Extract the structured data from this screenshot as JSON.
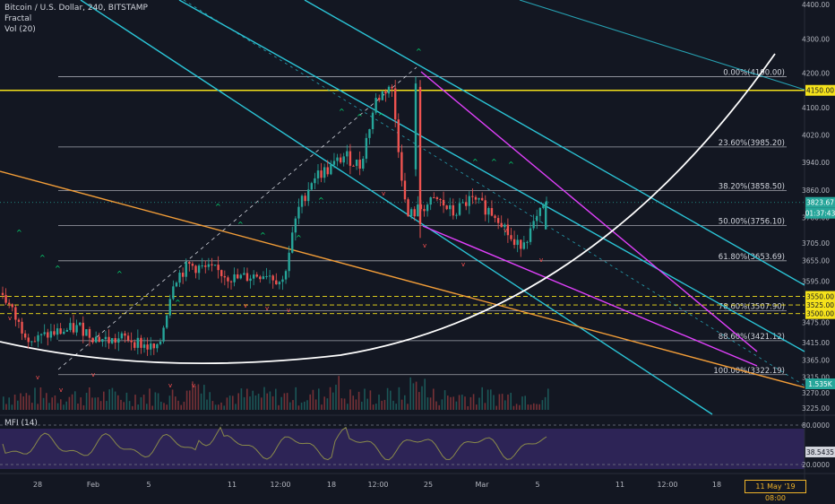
{
  "legend": {
    "title": "Bitcoin / U.S. Dollar, 240, BITSTAMP",
    "indicator1": "Fractal",
    "indicator2": "Vol (20)"
  },
  "mfi": {
    "label": "MFI (14)",
    "value_label": "38.5435",
    "levels": [
      80,
      20
    ],
    "level_labels": [
      "80.0000",
      "20.0000"
    ]
  },
  "price_axis": {
    "ticks": [
      "4400.00",
      "4300.00",
      "4200.00",
      "4100.00",
      "4020.00",
      "3940.00",
      "3860.00",
      "3780.00",
      "3705.00",
      "3655.00",
      "3595.00",
      "3475.00",
      "3415.00",
      "3365.00",
      "3315.00",
      "3270.00",
      "3225.00"
    ]
  },
  "price_tags": {
    "h4150": "4150.00",
    "last": "3823.67",
    "countdown": "01:37:43",
    "y3550": "3550.00",
    "y3525": "3525.00",
    "y3500": "3500.00",
    "volume": "1.535K"
  },
  "time_axis": {
    "labels": [
      "28",
      "Feb",
      "5",
      "11",
      "12:00",
      "18",
      "12:00",
      "25",
      "Mar",
      "5",
      "11",
      "12:00",
      "18"
    ]
  },
  "cursor_date": "11 May '19  08:00",
  "fib_levels": [
    {
      "ratio": 0,
      "price": 4190.0,
      "label": "0.00%(4190.00)"
    },
    {
      "ratio": 0.236,
      "price": 3985.2,
      "label": "23.60%(3985.20)"
    },
    {
      "ratio": 0.382,
      "price": 3858.5,
      "label": "38.20%(3858.50)"
    },
    {
      "ratio": 0.5,
      "price": 3756.1,
      "label": "50.00%(3756.10)"
    },
    {
      "ratio": 0.618,
      "price": 3653.69,
      "label": "61.80%(3653.69)"
    },
    {
      "ratio": 0.786,
      "price": 3507.9,
      "label": "78.60%(3507.90)"
    },
    {
      "ratio": 0.886,
      "price": 3421.12,
      "label": "88.60%(3421.12)"
    },
    {
      "ratio": 1,
      "price": 3322.19,
      "label": "100.00%(3322.19)"
    }
  ],
  "horizontal_levels": [
    {
      "price": 4150,
      "color": "#f5e21b",
      "style": "solid"
    },
    {
      "price": 3550,
      "color": "#f5e21b",
      "style": "dashed"
    },
    {
      "price": 3525,
      "color": "#f5e21b",
      "style": "dashed"
    },
    {
      "price": 3500,
      "color": "#f5e21b",
      "style": "dashed"
    }
  ],
  "colors": {
    "background": "#131722",
    "up": "#26a69a",
    "down": "#ef5350",
    "cyan_channel": "#2bc4d6",
    "magenta_channel": "#e040fb",
    "orange_line": "#f29d38",
    "yellow": "#f5e21b",
    "white_curve": "#ffffff",
    "mfi_line": "#8a8a4a",
    "mfi_fill": "#2d2456"
  },
  "chart_data": {
    "type": "candlestick",
    "symbol": "Bitcoin / U.S. Dollar",
    "interval": "240",
    "exchange": "BITSTAMP",
    "y_range": [
      3190,
      4420
    ],
    "last_price": 3823.67,
    "approx_close_path": [
      [
        "Jan 27",
        3560
      ],
      [
        "Jan 28",
        3470
      ],
      [
        "Jan 29",
        3420
      ],
      [
        "Jan 30",
        3440
      ],
      [
        "Jan 31",
        3450
      ],
      [
        "Feb 1",
        3460
      ],
      [
        "Feb 3",
        3430
      ],
      [
        "Feb 4",
        3420
      ],
      [
        "Feb 5",
        3430
      ],
      [
        "Feb 6",
        3410
      ],
      [
        "Feb 7",
        3390
      ],
      [
        "Feb 8",
        3600
      ],
      [
        "Feb 9",
        3640
      ],
      [
        "Feb 10",
        3630
      ],
      [
        "Feb 11",
        3620
      ],
      [
        "Feb 12",
        3600
      ],
      [
        "Feb 14",
        3610
      ],
      [
        "Feb 16",
        3620
      ],
      [
        "Feb 17",
        3590
      ],
      [
        "Feb 18",
        3800
      ],
      [
        "Feb 19",
        3900
      ],
      [
        "Feb 20",
        3920
      ],
      [
        "Feb 21",
        3960
      ],
      [
        "Feb 22",
        3930
      ],
      [
        "Feb 23",
        4120
      ],
      [
        "Feb 24",
        4170
      ],
      [
        "Feb 24 pm",
        3780
      ],
      [
        "Feb 26",
        3810
      ],
      [
        "Feb 27",
        3830
      ],
      [
        "Feb 28",
        3790
      ],
      [
        "Mar 1",
        3830
      ],
      [
        "Mar 2",
        3810
      ],
      [
        "Mar 3",
        3780
      ],
      [
        "Mar 4",
        3690
      ],
      [
        "Mar 5",
        3740
      ],
      [
        "Mar 5 pm",
        3824
      ]
    ]
  }
}
